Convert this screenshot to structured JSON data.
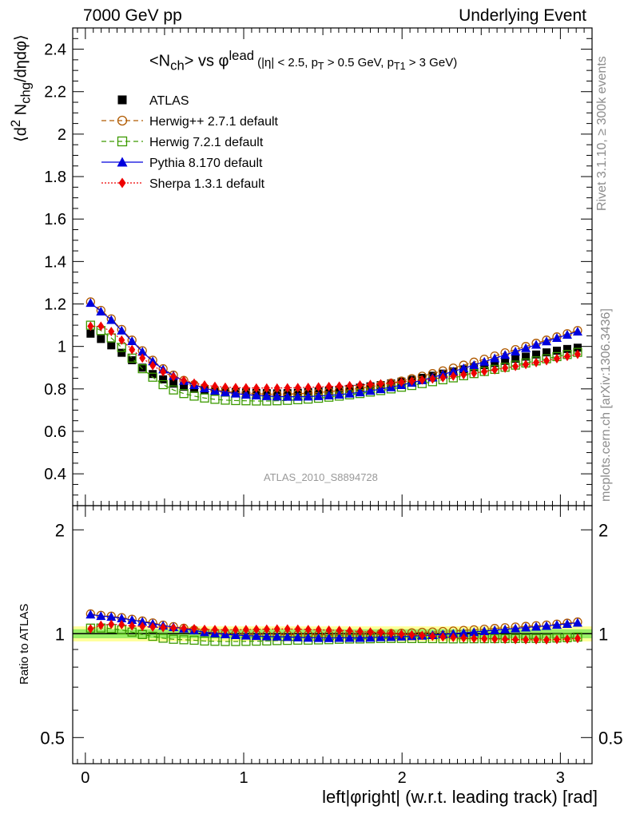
{
  "header": {
    "left": "7000 GeV pp",
    "right": "Underlying Event"
  },
  "side_labels": {
    "rivet": "Rivet 3.1.10, ≥ 300k events",
    "mcplots": "mcplots.cern.ch [arXiv:1306.3436]"
  },
  "annotation": "ATLAS_2010_S8894728",
  "ratio_ylabel": "Ratio to ATLAS",
  "chart_data": {
    "type": "scatter",
    "title_parts": {
      "lhs": "<N",
      "lhs_sub": "ch",
      "mid": "> vs φ",
      "mid_sup": "lead",
      "cuts_a": " (|η| < 2.5, p",
      "cuts_sub1": "T",
      "cuts_b": " > 0.5 GeV, p",
      "cuts_sub2": "T1",
      "cuts_c": " > 3 GeV)"
    },
    "ylabel_parts": {
      "a": "⟨d",
      "sup": "2",
      "b": " N",
      "sub": "chg",
      "c": "/dηdφ⟩"
    },
    "xlabel": "left|φright| (w.r.t. leading track) [rad]",
    "xlim": [
      -0.08,
      3.2
    ],
    "ylim": [
      0.25,
      2.5
    ],
    "ratio_ylim": [
      0.42,
      2.35
    ],
    "x_ticks": [
      0,
      1,
      2,
      3
    ],
    "y_ticks": [
      0.4,
      0.6,
      0.8,
      1,
      1.2,
      1.4,
      1.6,
      1.8,
      2,
      2.2,
      2.4
    ],
    "ratio_y_ticks": [
      0.5,
      1,
      2
    ],
    "x": [
      0.0327,
      0.0982,
      0.1636,
      0.2291,
      0.2945,
      0.36,
      0.4254,
      0.4909,
      0.5563,
      0.6218,
      0.6872,
      0.7527,
      0.8181,
      0.8836,
      0.949,
      1.0145,
      1.0799,
      1.1454,
      1.2108,
      1.2763,
      1.3417,
      1.4072,
      1.4726,
      1.5381,
      1.6035,
      1.669,
      1.7344,
      1.7999,
      1.8653,
      1.9308,
      1.9962,
      2.0617,
      2.1271,
      2.1926,
      2.258,
      2.3235,
      2.3889,
      2.4544,
      2.5198,
      2.5853,
      2.6507,
      2.7162,
      2.7816,
      2.8471,
      2.9125,
      2.978,
      3.0434,
      3.1089
    ],
    "series": [
      {
        "name": "ATLAS",
        "color": "#000000",
        "marker": "filled-square",
        "values": [
          1.06,
          1.035,
          1.005,
          0.97,
          0.935,
          0.9,
          0.87,
          0.845,
          0.825,
          0.81,
          0.8,
          0.795,
          0.79,
          0.787,
          0.785,
          0.783,
          0.781,
          0.78,
          0.779,
          0.78,
          0.782,
          0.785,
          0.788,
          0.792,
          0.795,
          0.8,
          0.806,
          0.812,
          0.818,
          0.826,
          0.834,
          0.843,
          0.852,
          0.862,
          0.872,
          0.882,
          0.892,
          0.902,
          0.912,
          0.922,
          0.932,
          0.942,
          0.952,
          0.962,
          0.972,
          0.98,
          0.988,
          0.994
        ]
      },
      {
        "name": "Herwig++ 2.7.1 default",
        "color": "#b05a00",
        "marker": "open-circle",
        "dash": "6,4",
        "values": [
          1.21,
          1.17,
          1.13,
          1.08,
          1.03,
          0.98,
          0.935,
          0.895,
          0.865,
          0.84,
          0.82,
          0.805,
          0.795,
          0.788,
          0.783,
          0.78,
          0.777,
          0.775,
          0.774,
          0.775,
          0.777,
          0.78,
          0.783,
          0.787,
          0.792,
          0.797,
          0.803,
          0.81,
          0.818,
          0.827,
          0.837,
          0.848,
          0.86,
          0.872,
          0.885,
          0.898,
          0.912,
          0.926,
          0.94,
          0.955,
          0.97,
          0.985,
          1.0,
          1.015,
          1.03,
          1.045,
          1.06,
          1.075
        ]
      },
      {
        "name": "Herwig 7.2.1 default",
        "color": "#3c9a00",
        "marker": "open-square",
        "dash": "6,4",
        "values": [
          1.1,
          1.075,
          1.04,
          0.995,
          0.945,
          0.895,
          0.855,
          0.82,
          0.795,
          0.778,
          0.766,
          0.757,
          0.751,
          0.747,
          0.745,
          0.744,
          0.743,
          0.743,
          0.744,
          0.746,
          0.749,
          0.752,
          0.756,
          0.761,
          0.766,
          0.772,
          0.778,
          0.785,
          0.792,
          0.8,
          0.808,
          0.816,
          0.825,
          0.834,
          0.843,
          0.852,
          0.862,
          0.872,
          0.882,
          0.892,
          0.902,
          0.912,
          0.922,
          0.932,
          0.942,
          0.952,
          0.962,
          0.972
        ]
      },
      {
        "name": "Pythia 8.170 default",
        "color": "#0000dd",
        "marker": "filled-triangle",
        "values": [
          1.205,
          1.165,
          1.125,
          1.075,
          1.025,
          0.975,
          0.93,
          0.892,
          0.862,
          0.838,
          0.818,
          0.803,
          0.792,
          0.784,
          0.778,
          0.773,
          0.769,
          0.766,
          0.764,
          0.763,
          0.763,
          0.764,
          0.766,
          0.769,
          0.773,
          0.778,
          0.784,
          0.791,
          0.799,
          0.808,
          0.818,
          0.829,
          0.841,
          0.854,
          0.868,
          0.882,
          0.897,
          0.912,
          0.928,
          0.944,
          0.96,
          0.976,
          0.992,
          1.008,
          1.024,
          1.04,
          1.055,
          1.07
        ]
      },
      {
        "name": "Sherpa 1.3.1 default",
        "color": "#ee0000",
        "marker": "filled-diamond",
        "dash": "2,2",
        "values": [
          1.095,
          1.095,
          1.07,
          1.03,
          0.985,
          0.945,
          0.91,
          0.88,
          0.857,
          0.84,
          0.827,
          0.818,
          0.812,
          0.808,
          0.806,
          0.805,
          0.804,
          0.804,
          0.804,
          0.805,
          0.806,
          0.807,
          0.809,
          0.811,
          0.813,
          0.815,
          0.818,
          0.821,
          0.824,
          0.828,
          0.832,
          0.837,
          0.842,
          0.847,
          0.853,
          0.86,
          0.867,
          0.874,
          0.882,
          0.89,
          0.898,
          0.906,
          0.915,
          0.924,
          0.933,
          0.943,
          0.953,
          0.963
        ]
      }
    ],
    "reference_band": {
      "inner": 0.03,
      "outer": 0.05
    }
  }
}
